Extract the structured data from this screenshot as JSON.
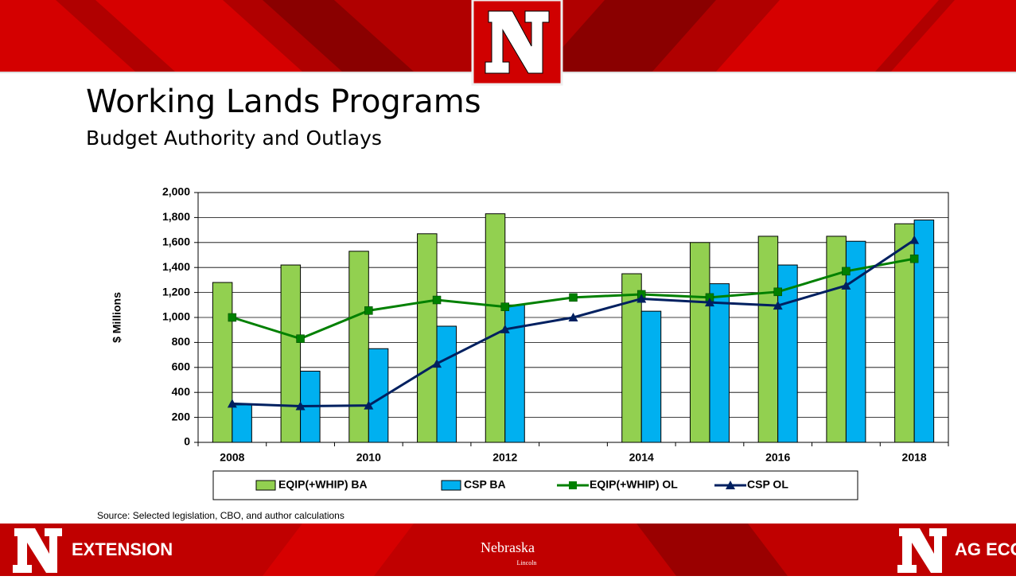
{
  "slide": {
    "title": "Working Lands Programs",
    "subtitle": "Budget Authority and Outlays",
    "source": "Source: Selected legislation, CBO, and author calculations",
    "footer_left": "EXTENSION",
    "footer_center": "Nebraska",
    "footer_center_sub": "Lincoln",
    "footer_right": "AG ECON"
  },
  "chart_data": {
    "type": "bar-line",
    "ylabel": "$ Millions",
    "categories": [
      "2008",
      null,
      "2010",
      null,
      "2012",
      null,
      "2014",
      null,
      "2016",
      null,
      "2018"
    ],
    "ylim": [
      0,
      2000
    ],
    "yticks": [
      0,
      200,
      400,
      600,
      800,
      {
        "value": 1000,
        "label": "1,000"
      },
      {
        "value": 1200,
        "label": "1,200"
      },
      {
        "value": 1400,
        "label": "1,400"
      },
      {
        "value": 1600,
        "label": "1,600"
      },
      {
        "value": 1800,
        "label": "1,800"
      },
      {
        "value": 2000,
        "label": "2,000"
      }
    ],
    "grid": true,
    "series": [
      {
        "name": "EQIP(+WHIP) BA",
        "kind": "bar",
        "color": "#92d050",
        "values": [
          1280,
          1420,
          1530,
          1670,
          1830,
          null,
          1350,
          1600,
          1650,
          1650,
          1750
        ]
      },
      {
        "name": "CSP BA",
        "kind": "bar",
        "color": "#00b0f0",
        "values": [
          300,
          570,
          750,
          930,
          1100,
          null,
          1050,
          1270,
          1420,
          1610,
          1780
        ]
      },
      {
        "name": "EQIP(+WHIP) OL",
        "kind": "line",
        "marker": "square",
        "color": "#008000",
        "values": [
          1000,
          830,
          1055,
          1140,
          1085,
          1160,
          1185,
          1160,
          1205,
          1370,
          1470
        ]
      },
      {
        "name": "CSP OL",
        "kind": "line",
        "marker": "triangle",
        "color": "#002060",
        "values": [
          310,
          290,
          295,
          630,
          905,
          1000,
          1150,
          1120,
          1095,
          1255,
          1620
        ]
      }
    ]
  }
}
